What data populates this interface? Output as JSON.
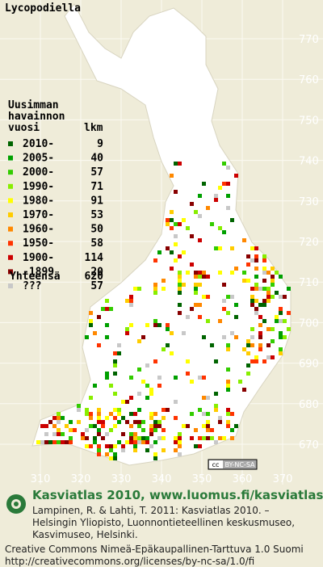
{
  "title": "Lycopodiella",
  "legend": {
    "header": [
      "Uusimman",
      "havainnon",
      "vuosi"
    ],
    "count_header": "lkm",
    "rows": [
      {
        "label": "2010-",
        "count": "9",
        "color": "#006400"
      },
      {
        "label": "2005-",
        "count": "40",
        "color": "#00a000"
      },
      {
        "label": "2000-",
        "count": "57",
        "color": "#33cc00"
      },
      {
        "label": "1990-",
        "count": "71",
        "color": "#88ee00"
      },
      {
        "label": "1980-",
        "count": "91",
        "color": "#ffff00"
      },
      {
        "label": "1970-",
        "count": "53",
        "color": "#ffcc00"
      },
      {
        "label": "1960-",
        "count": "50",
        "color": "#ff8800"
      },
      {
        "label": "1950-",
        "count": "58",
        "color": "#ff3300"
      },
      {
        "label": "1900-",
        "count": "114",
        "color": "#cc0000"
      },
      {
        "label": "-1899",
        "count": "20",
        "color": "#880000"
      },
      {
        "label": "???",
        "count": "57",
        "color": "#c8c8c8"
      }
    ],
    "total_label": "Yhteensä",
    "total": "620"
  },
  "grid_right": [
    "770",
    "760",
    "750",
    "740",
    "730",
    "720",
    "710",
    "700",
    "690",
    "680",
    "670"
  ],
  "grid_bottom": [
    "310",
    "320",
    "330",
    "340",
    "350",
    "360",
    "370"
  ],
  "license_badge": {
    "cc": "cc",
    "text": "BY-NC-SA"
  },
  "footer": {
    "heading": "Kasviatlas 2010, www.luomus.fi/kasviatlas",
    "citation": [
      "Lampinen, R. & Lahti, T. 2011: Kasviatlas 2010. –",
      "Helsingin Yliopisto, Luonnontieteellinen keskusmuseo,",
      "Kasvimuseo, Helsinki."
    ],
    "license": [
      "Creative Commons Nimeä-Epäkaupallinen-Tarttuva 1.0 Suomi",
      "http://creativecommons.org/licenses/by-nc-sa/1.0/fi"
    ]
  }
}
